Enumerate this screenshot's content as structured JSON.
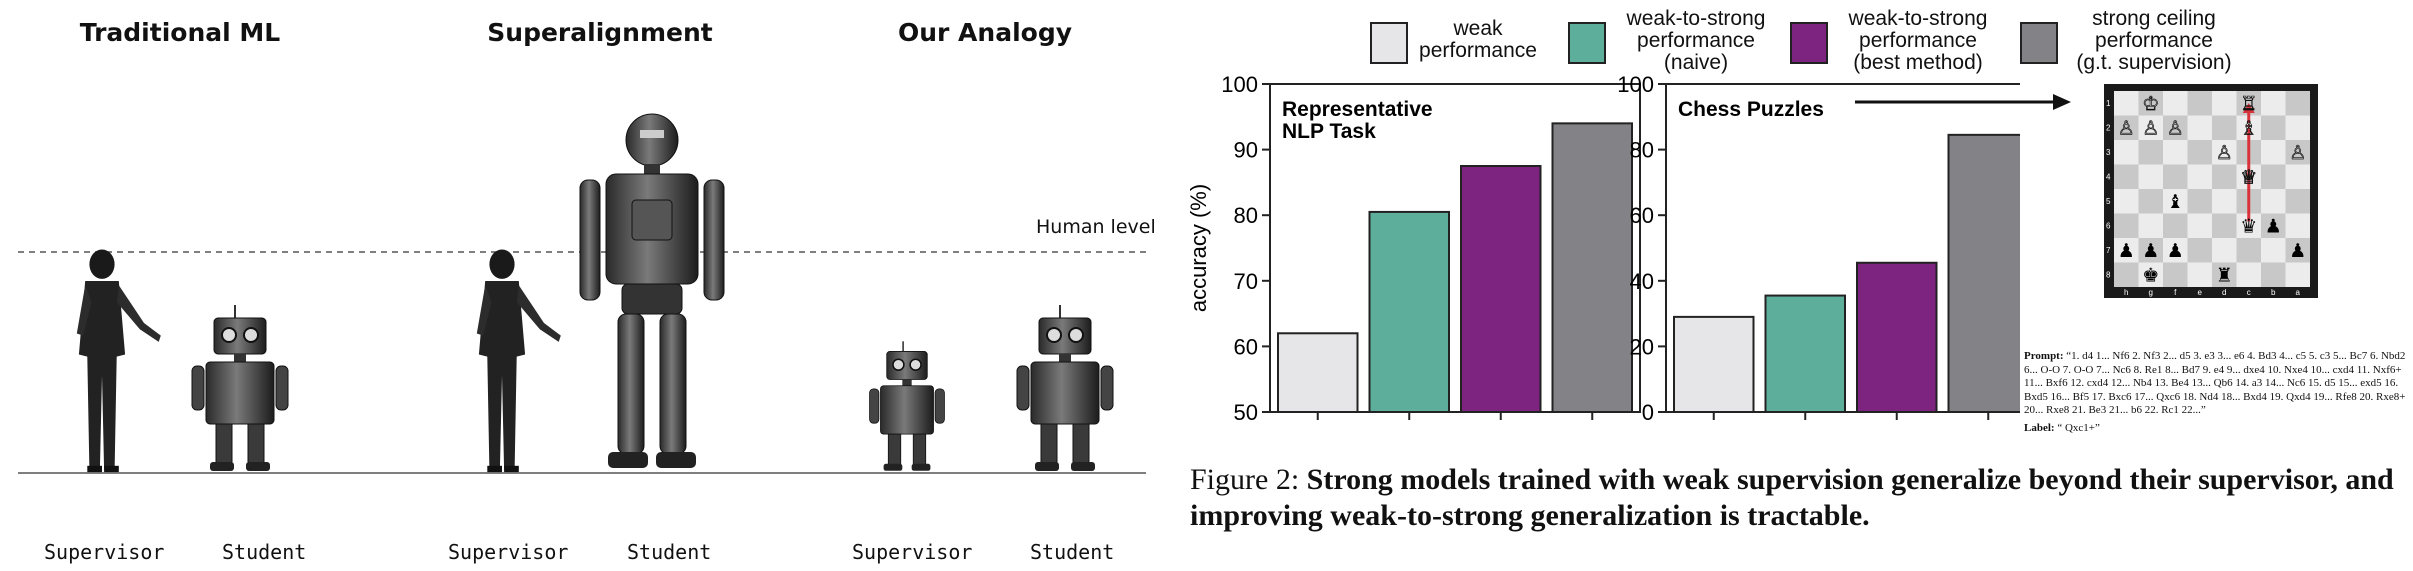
{
  "illustration": {
    "panels": [
      {
        "title": "Traditional ML",
        "supervisor_label": "Supervisor",
        "student_label": "Student"
      },
      {
        "title": "Superalignment",
        "supervisor_label": "Supervisor",
        "student_label": "Student"
      },
      {
        "title": "Our Analogy",
        "supervisor_label": "Supervisor",
        "student_label": "Student"
      }
    ],
    "human_level_label": "Human level"
  },
  "legend": [
    {
      "label": "weak\nperformance",
      "color": "#e6e6e8"
    },
    {
      "label": "weak-to-strong\nperformance\n(naive)",
      "color": "#5dae9b"
    },
    {
      "label": "weak-to-strong\nperformance\n(best method)",
      "color": "#7d2380"
    },
    {
      "label": "strong ceiling\nperformance\n(g.t. supervision)",
      "color": "#838387"
    }
  ],
  "chart_data": [
    {
      "type": "bar",
      "title": "Representative\nNLP Task",
      "ylabel": "accuracy (%)",
      "ylim": [
        50,
        100
      ],
      "yticks": [
        50,
        60,
        70,
        80,
        90,
        100
      ],
      "values": [
        62,
        80.5,
        87.5,
        94
      ]
    },
    {
      "type": "bar",
      "title": "Chess Puzzles",
      "ylabel": "",
      "ylim": [
        0,
        100
      ],
      "yticks": [
        0,
        20,
        40,
        60,
        80,
        100
      ],
      "values": [
        29,
        35.5,
        45.5,
        84.5
      ]
    }
  ],
  "chess": {
    "files": [
      "h",
      "g",
      "f",
      "e",
      "d",
      "c",
      "b",
      "a"
    ],
    "ranks": [
      "1",
      "2",
      "3",
      "4",
      "5",
      "6",
      "7",
      "8"
    ],
    "prompt_label": "Prompt:",
    "prompt_text": "“1. d4 1... Nf6 2. Nf3 2... d5 3. e3 3... e6 4. Bd3 4... c5 5. c3 5... Bc7 6. Nbd2 6... O-O 7. O-O 7... Nc6 8. Re1 8... Bd7 9. e4 9... dxe4 10. Nxe4 10... cxd4 11. Nxf6+ 11... Bxf6 12. cxd4 12... Nb4 13. Be4 13... Qb6 14. a3 14... Nc6 15. d5 15... exd5 16. Bxd5 16... Bf5 17. Bxc6 17... Qxc6 18. Nd4 18... Bxd4 19. Qxd4 19... Rfe8 20. Rxe8+ 20... Rxe8 21. Be3 21... b6 22. Rc1 22...”",
    "answer_label": "Label:",
    "answer_text": "“ Qxc1+”"
  },
  "caption": {
    "prefix": "Figure 2: ",
    "bold": "Strong models trained with weak supervision generalize beyond their supervisor, and improving weak-to-strong generalization is tractable."
  }
}
